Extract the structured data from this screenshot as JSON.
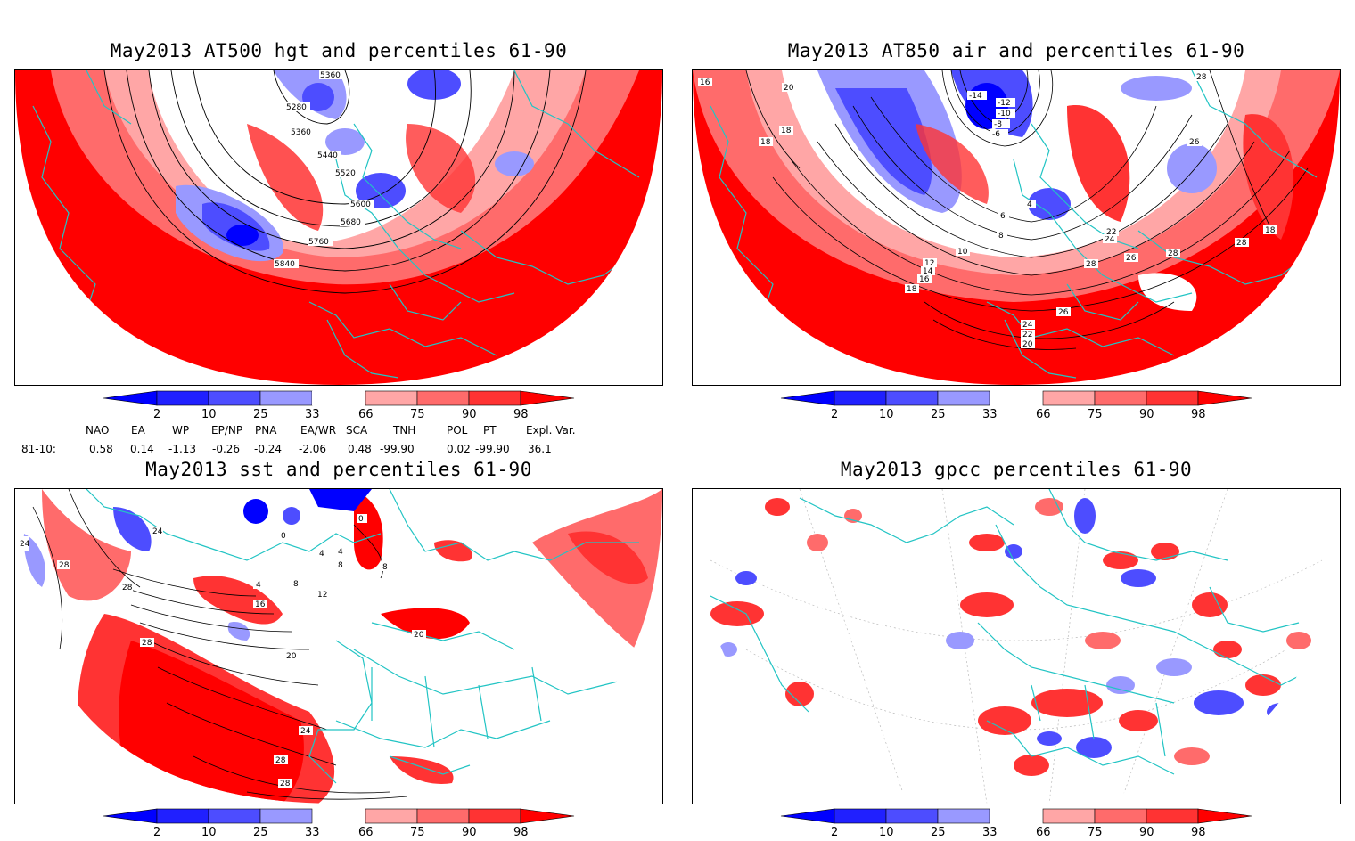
{
  "colors": {
    "deep_blue": "#0000ff",
    "mid_blue": "#4d4dff",
    "light_blue": "#9999ff",
    "pale_red": "#ffa6a6",
    "light_red": "#ff6b6b",
    "mid_red": "#ff3333",
    "deep_red": "#ff0000",
    "coast": "#22c4c4",
    "contour": "#000000"
  },
  "panels": [
    {
      "id": "hgt",
      "title": "May2013 AT500 hgt and percentiles 61-90",
      "contour_labels": [
        "5360",
        "5280",
        "5360",
        "5440",
        "5520",
        "5600",
        "5680",
        "5760",
        "5840"
      ]
    },
    {
      "id": "air",
      "title": "May2013 AT850 air and percentiles 61-90",
      "contour_labels": [
        "16",
        "20",
        "18",
        "18",
        "-14",
        "-12",
        "-10",
        "-8",
        "-6",
        "4",
        "6",
        "8",
        "10",
        "12",
        "14",
        "16",
        "18",
        "28",
        "26",
        "24",
        "22",
        "28",
        "26",
        "28",
        "28",
        "18",
        "26",
        "24",
        "22",
        "20"
      ]
    },
    {
      "id": "sst",
      "title": "May2013 sst and percentiles 61-90",
      "contour_labels": [
        "24",
        "24",
        "28",
        "28",
        "4",
        "8",
        "12",
        "16",
        "20",
        "24",
        "28",
        "28",
        "28",
        "0",
        "0",
        "4",
        "4",
        "8",
        "8",
        "20"
      ]
    },
    {
      "id": "gpcc",
      "title": "May2013 gpcc percentiles 61-90",
      "contour_labels": []
    }
  ],
  "colorbar": {
    "ticks": [
      "2",
      "10",
      "25",
      "33",
      "66",
      "75",
      "90",
      "98"
    ]
  },
  "indices": {
    "row_label": "81-10:",
    "headers": [
      "NAO",
      "EA",
      "WP",
      "EP/NP",
      "PNA",
      "EA/WR",
      "SCA",
      "TNH",
      "POL",
      "PT",
      "Expl. Var."
    ],
    "values": [
      "0.58",
      "0.14",
      "-1.13",
      "-0.26",
      "-0.24",
      "-2.06",
      "0.48",
      "-99.90",
      "0.02",
      "-99.90",
      "36.1"
    ]
  }
}
